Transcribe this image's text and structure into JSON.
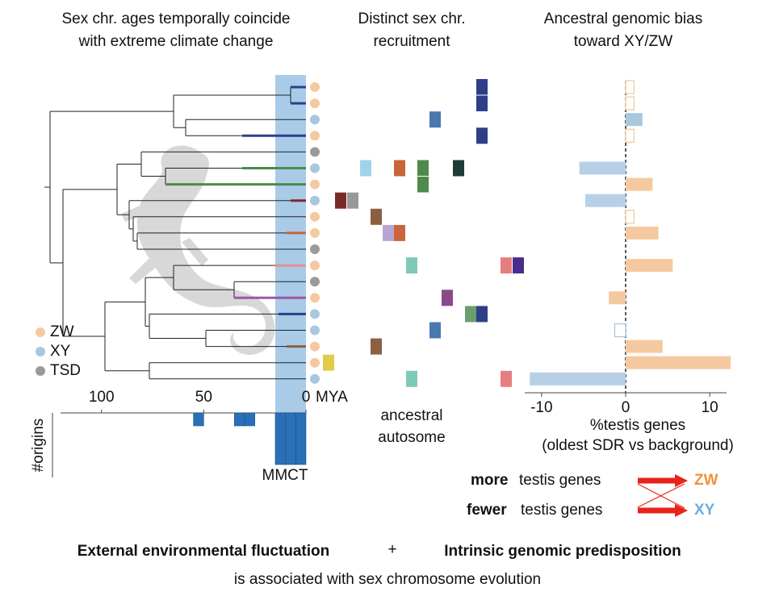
{
  "panels": [
    {
      "title": [
        "Sex chr. ages temporally coincide",
        "with extreme climate change"
      ]
    },
    {
      "title": [
        "Distinct sex chr.",
        "recruitment"
      ]
    },
    {
      "title": [
        "Ancestral genomic bias",
        "toward XY/ZW"
      ]
    }
  ],
  "legend": [
    {
      "label": "ZW",
      "color": "#f5c9a0"
    },
    {
      "label": "XY",
      "color": "#a9c7de"
    },
    {
      "label": "TSD",
      "color": "#9a9a9a"
    }
  ],
  "tip_colors": [
    "#f5c9a0",
    "#f5c9a0",
    "#a9c7de",
    "#f5c9a0",
    "#9a9a9a",
    "#a9c7de",
    "#f5c9a0",
    "#a9c7de",
    "#f5c9a0",
    "#f5c9a0",
    "#9a9a9a",
    "#f5c9a0",
    "#9a9a9a",
    "#f5c9a0",
    "#a9c7de",
    "#a9c7de",
    "#f5c9a0",
    "#f5c9a0",
    "#a9c7de"
  ],
  "recruitment_label": [
    "ancestral",
    "autosome"
  ],
  "chart_data": [
    {
      "type": "histogram",
      "bins": [
        0,
        5,
        10,
        15,
        20,
        25,
        30,
        35,
        40,
        45,
        50,
        55
      ],
      "values": [
        4,
        4,
        4,
        0,
        0,
        1,
        1,
        0,
        0,
        0,
        1
      ],
      "color": "#2a70b8",
      "xlim": [
        120,
        0
      ],
      "xticks": [
        100,
        50,
        0
      ],
      "x_unit": "MYA",
      "ylabel": "#origins",
      "ylim": [
        0,
        4
      ],
      "shade": [
        15,
        0
      ],
      "shade_color": "#a9cbe8",
      "annotation": "MMCT"
    },
    {
      "type": "bar",
      "orientation": "horizontal",
      "categories": [
        null,
        null,
        null,
        null,
        null,
        null,
        null,
        null,
        null,
        null,
        null,
        null,
        null,
        null,
        null,
        null,
        null,
        null,
        null
      ],
      "values": [
        1,
        1,
        2,
        1,
        null,
        -5.5,
        3.2,
        -4.8,
        1,
        3.9,
        null,
        5.6,
        null,
        -2,
        null,
        -1.3,
        4.4,
        12.5,
        -11.4
      ],
      "colors": [
        "#f5c9a0",
        "#f5c9a0",
        "#a9c7de",
        "#f5c9a0",
        null,
        "#b7d0e6",
        "#f5c9a0",
        "#b7d0e6",
        "#f5c9a0",
        "#f5c9a0",
        null,
        "#f5c9a0",
        null,
        "#f5c9a0",
        null,
        "#a9c7de",
        "#f5c9a0",
        "#f5c9a0",
        "#b7d0e6"
      ],
      "hollow": [
        true,
        true,
        false,
        true,
        false,
        false,
        false,
        false,
        true,
        false,
        false,
        false,
        false,
        false,
        false,
        true,
        false,
        false,
        false
      ],
      "xlim": [
        -12,
        12
      ],
      "xticks": [
        -10,
        0,
        10
      ],
      "xlabel": [
        "%testis genes",
        "(oldest SDR vs background)"
      ]
    }
  ],
  "key": [
    {
      "bold": "more",
      "text": "testis genes",
      "target": "ZW",
      "color": "#f0923a"
    },
    {
      "bold": "fewer",
      "text": "testis genes",
      "target": "XY",
      "color": "#6aaee0"
    }
  ],
  "footer": {
    "left": "External environmental fluctuation",
    "plus": "+",
    "right": "Intrinsic genomic predisposition",
    "bottom": "is associated with sex chromosome evolution"
  }
}
